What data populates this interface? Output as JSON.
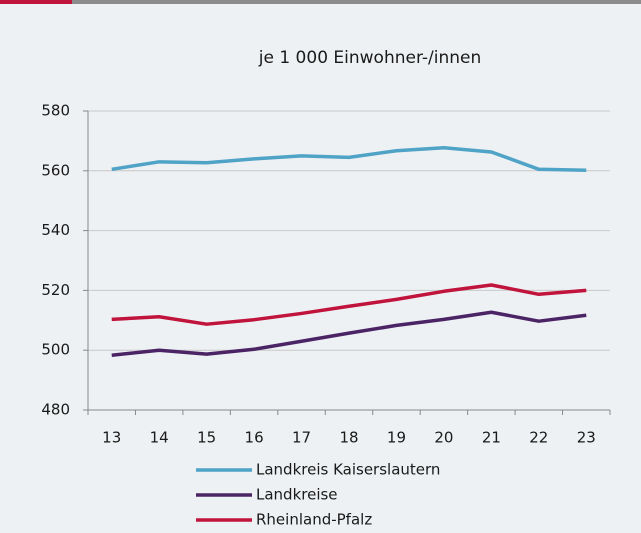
{
  "chart_data": {
    "type": "line",
    "title": "je 1 000 Einwohner-/innen",
    "categories": [
      "13",
      "14",
      "15",
      "16",
      "17",
      "18",
      "19",
      "20",
      "21",
      "22",
      "23"
    ],
    "series": [
      {
        "name": "Landkreis Kaiserslautern",
        "color": "#4fa3c7",
        "values": [
          560.5,
          563,
          562.7,
          564,
          565,
          564.5,
          566.7,
          567.7,
          566.3,
          560.5,
          560.2
        ]
      },
      {
        "name": "Landkreise",
        "color": "#4b2466",
        "values": [
          498.3,
          500,
          498.7,
          500.3,
          503,
          505.7,
          508.3,
          510.3,
          512.7,
          509.7,
          511.7
        ]
      },
      {
        "name": "Rheinland-Pfalz",
        "color": "#c0143c",
        "values": [
          510.3,
          511.2,
          508.7,
          510.2,
          512.3,
          514.7,
          517,
          519.7,
          521.8,
          518.7,
          520
        ]
      }
    ],
    "ylim": [
      480,
      580
    ],
    "yticks": [
      480,
      500,
      520,
      540,
      560,
      580
    ],
    "grid": true
  }
}
